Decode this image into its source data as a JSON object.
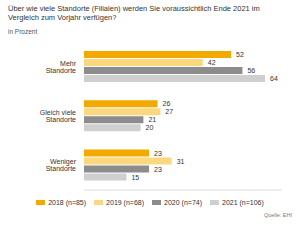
{
  "chart_data": {
    "type": "bar",
    "orientation": "horizontal",
    "title": "Über wie viele Standorte (Filialen) werden Sie voraussichtlich Ende 2021 im Vergleich zum Vorjahr verfügen?",
    "subtitle": "in Prozent",
    "source": "Quelle: EHI",
    "categories": [
      "Mehr Standorte",
      "Gleich viele Standorte",
      "Weniger Standorte"
    ],
    "series": [
      {
        "name": "2018 (n=85)",
        "color": "#f2a900",
        "values": [
          52,
          26,
          23
        ]
      },
      {
        "name": "2019 (n=68)",
        "color": "#fbd77e",
        "values": [
          42,
          27,
          31
        ]
      },
      {
        "name": "2020 (n=74)",
        "color": "#8c8c8c",
        "values": [
          56,
          21,
          23
        ]
      },
      {
        "name": "2021 (n=106)",
        "color": "#cfcfcf",
        "values": [
          64,
          20,
          15
        ]
      }
    ],
    "xlim": [
      0,
      70
    ],
    "data_labels": true,
    "tick_labels": "y",
    "legend": "bottom",
    "grid": false
  }
}
